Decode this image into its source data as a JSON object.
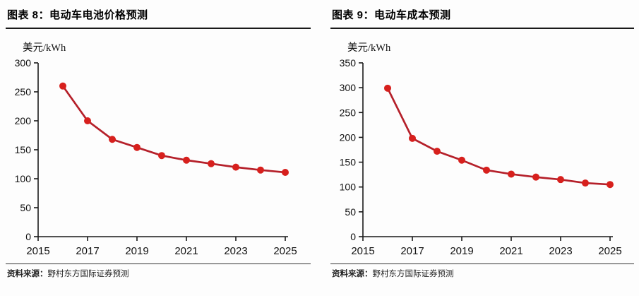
{
  "charts": [
    {
      "title": "图表 8：电动车电池价格预测",
      "unit_label": "美元/kWh",
      "source_label": "资料来源：",
      "source_text": "野村东方国际证券预测"
    },
    {
      "title": "图表 9：电动车成本预测",
      "unit_label": "美元/kWh",
      "source_label": "资料来源：",
      "source_text": "野村东方国际证券预测"
    }
  ],
  "chart_data": [
    {
      "type": "line",
      "title": "图表 8：电动车电池价格预测",
      "ylabel": "美元/kWh",
      "xlabel": "",
      "x": [
        2016,
        2017,
        2018,
        2019,
        2020,
        2021,
        2022,
        2023,
        2024,
        2025
      ],
      "values": [
        260,
        200,
        168,
        154,
        140,
        132,
        126,
        120,
        115,
        111
      ],
      "xlim": [
        2015,
        2025
      ],
      "ylim": [
        0,
        300
      ],
      "x_ticks": [
        2015,
        2017,
        2019,
        2021,
        2023,
        2025
      ],
      "y_tick_step": 50,
      "grid": false,
      "legend": "none",
      "line_color": "#b5202a",
      "marker_color": "#d7201d",
      "axis_color": "#1a1a1a",
      "source": "资料来源：野村东方国际证券预测"
    },
    {
      "type": "line",
      "title": "图表 9：电动车成本预测",
      "ylabel": "美元/kWh",
      "xlabel": "",
      "x": [
        2016,
        2017,
        2018,
        2019,
        2020,
        2021,
        2022,
        2023,
        2024,
        2025
      ],
      "values": [
        299,
        198,
        172,
        154,
        134,
        126,
        120,
        115,
        108,
        105
      ],
      "xlim": [
        2015,
        2025
      ],
      "ylim": [
        0,
        350
      ],
      "x_ticks": [
        2015,
        2017,
        2019,
        2021,
        2023,
        2025
      ],
      "y_tick_step": 50,
      "grid": false,
      "legend": "none",
      "line_color": "#b5202a",
      "marker_color": "#d7201d",
      "axis_color": "#1a1a1a",
      "source": "资料来源：野村东方国际证券预测"
    }
  ]
}
